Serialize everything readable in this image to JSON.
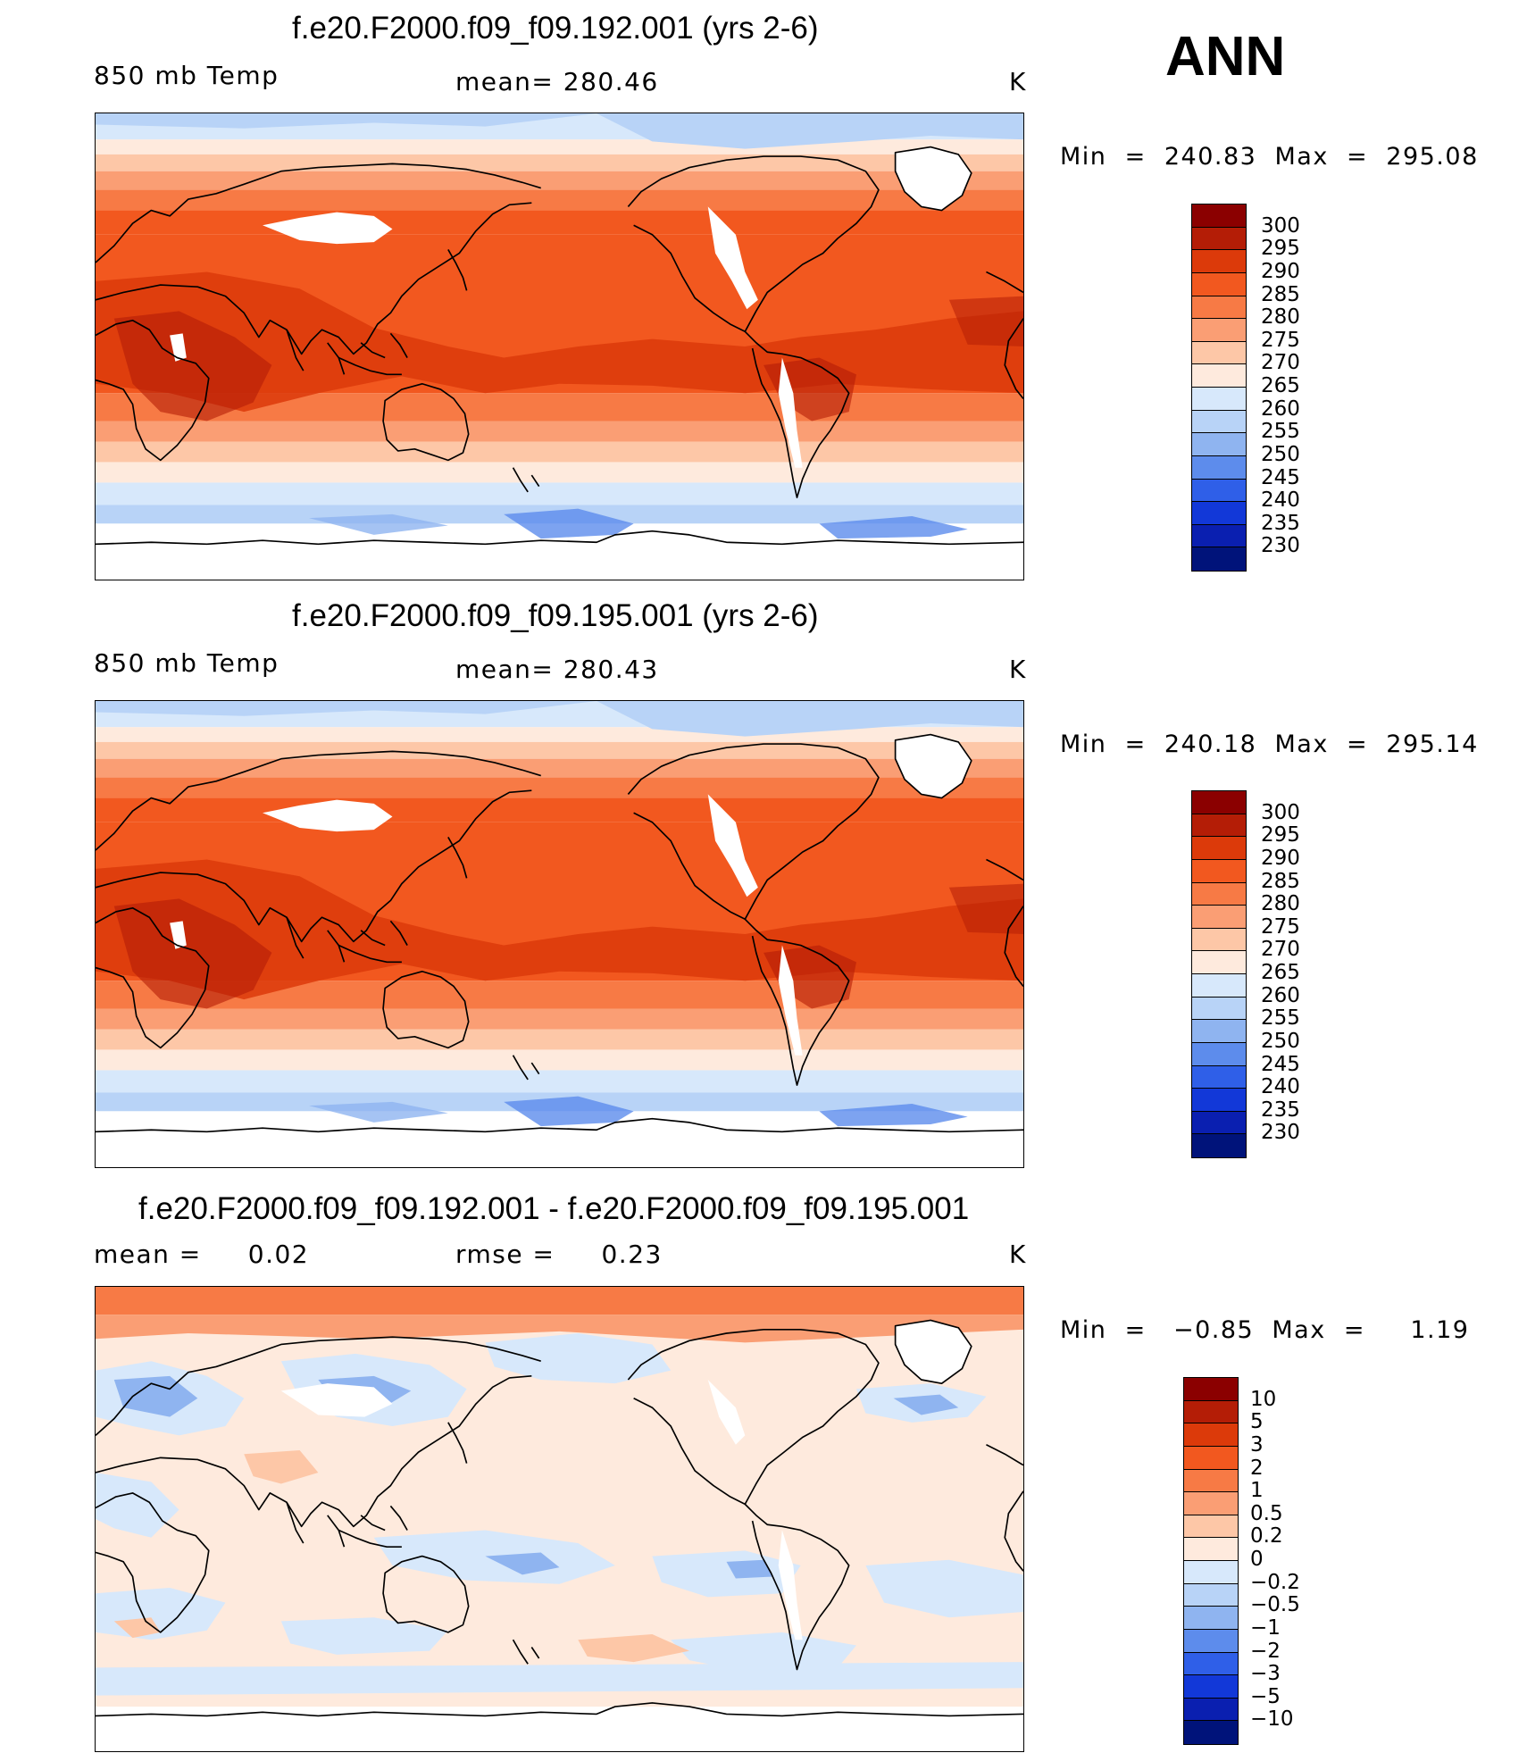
{
  "season": "ANN",
  "chart_data": [
    {
      "type": "heatmap",
      "title": "f.e20.F2000.f09_f09.192.001 (yrs 2-6)",
      "variable": "850 mb Temp",
      "mean_label": "mean=  280.46",
      "mean": 280.46,
      "units": "K",
      "min_max_label": "Min  =  240.83  Max  =  295.08",
      "min": 240.83,
      "max": 295.08,
      "colorbar": {
        "levels": [
          "300",
          "295",
          "290",
          "285",
          "280",
          "275",
          "270",
          "265",
          "260",
          "255",
          "250",
          "245",
          "240",
          "235",
          "230"
        ],
        "colors": [
          "#8b0000",
          "#b41d06",
          "#dc3a0a",
          "#f2581f",
          "#f77a45",
          "#fa9e74",
          "#fdc7a7",
          "#feeadd",
          "#d7e8fb",
          "#b8d3f7",
          "#8fb4f0",
          "#5d8cec",
          "#2f5fe8",
          "#1238d8",
          "#0a1fb0",
          "#00137a"
        ]
      }
    },
    {
      "type": "heatmap",
      "title": "f.e20.F2000.f09_f09.195.001 (yrs 2-6)",
      "variable": "850 mb Temp",
      "mean_label": "mean=  280.43",
      "mean": 280.43,
      "units": "K",
      "min_max_label": "Min  =  240.18  Max  =  295.14",
      "min": 240.18,
      "max": 295.14,
      "colorbar": {
        "levels": [
          "300",
          "295",
          "290",
          "285",
          "280",
          "275",
          "270",
          "265",
          "260",
          "255",
          "250",
          "245",
          "240",
          "235",
          "230"
        ],
        "colors": [
          "#8b0000",
          "#b41d06",
          "#dc3a0a",
          "#f2581f",
          "#f77a45",
          "#fa9e74",
          "#fdc7a7",
          "#feeadd",
          "#d7e8fb",
          "#b8d3f7",
          "#8fb4f0",
          "#5d8cec",
          "#2f5fe8",
          "#1238d8",
          "#0a1fb0",
          "#00137a"
        ]
      }
    },
    {
      "type": "heatmap",
      "title": "f.e20.F2000.f09_f09.192.001 - f.e20.F2000.f09_f09.195.001",
      "mean_label": "mean =     0.02",
      "mean": 0.02,
      "rmse_label": "rmse =     0.23",
      "rmse": 0.23,
      "units": "K",
      "min_max_label": "Min  =   −0.85  Max  =     1.19",
      "min": -0.85,
      "max": 1.19,
      "colorbar": {
        "levels": [
          "10",
          "5",
          "3",
          "2",
          "1",
          "0.5",
          "0.2",
          "0",
          "−0.2",
          "−0.5",
          "−1",
          "−2",
          "−3",
          "−5",
          "−10"
        ],
        "colors": [
          "#8b0000",
          "#b41d06",
          "#dc3a0a",
          "#f2581f",
          "#f77a45",
          "#fa9e74",
          "#fdc7a7",
          "#feeadd",
          "#d7e8fb",
          "#b8d3f7",
          "#8fb4f0",
          "#5d8cec",
          "#2f5fe8",
          "#1238d8",
          "#0a1fb0",
          "#00137a"
        ]
      }
    }
  ]
}
